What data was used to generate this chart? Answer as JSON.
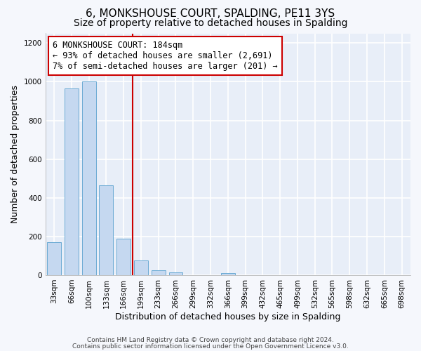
{
  "title": "6, MONKSHOUSE COURT, SPALDING, PE11 3YS",
  "subtitle": "Size of property relative to detached houses in Spalding",
  "xlabel": "Distribution of detached houses by size in Spalding",
  "ylabel": "Number of detached properties",
  "bar_labels": [
    "33sqm",
    "66sqm",
    "100sqm",
    "133sqm",
    "166sqm",
    "199sqm",
    "233sqm",
    "266sqm",
    "299sqm",
    "332sqm",
    "366sqm",
    "399sqm",
    "432sqm",
    "465sqm",
    "499sqm",
    "532sqm",
    "565sqm",
    "598sqm",
    "632sqm",
    "665sqm",
    "698sqm"
  ],
  "bar_values": [
    170,
    965,
    1000,
    465,
    190,
    75,
    25,
    15,
    0,
    0,
    10,
    0,
    0,
    0,
    0,
    0,
    0,
    0,
    0,
    0,
    0
  ],
  "bar_color": "#c5d8f0",
  "bar_edge_color": "#6aaad4",
  "vline_x": 4.5,
  "vline_color": "#cc0000",
  "annotation_title": "6 MONKSHOUSE COURT: 184sqm",
  "annotation_line1": "← 93% of detached houses are smaller (2,691)",
  "annotation_line2": "7% of semi-detached houses are larger (201) →",
  "box_facecolor": "#ffffff",
  "box_edgecolor": "#cc0000",
  "ylim": [
    0,
    1250
  ],
  "yticks": [
    0,
    200,
    400,
    600,
    800,
    1000,
    1200
  ],
  "footnote1": "Contains HM Land Registry data © Crown copyright and database right 2024.",
  "footnote2": "Contains public sector information licensed under the Open Government Licence v3.0.",
  "plot_bg": "#e8eef8",
  "fig_bg": "#f5f7fc",
  "grid_color": "#ffffff",
  "title_fontsize": 11,
  "subtitle_fontsize": 10,
  "axis_label_fontsize": 9,
  "tick_fontsize": 7.5,
  "annotation_fontsize": 8.5,
  "footnote_fontsize": 6.5
}
